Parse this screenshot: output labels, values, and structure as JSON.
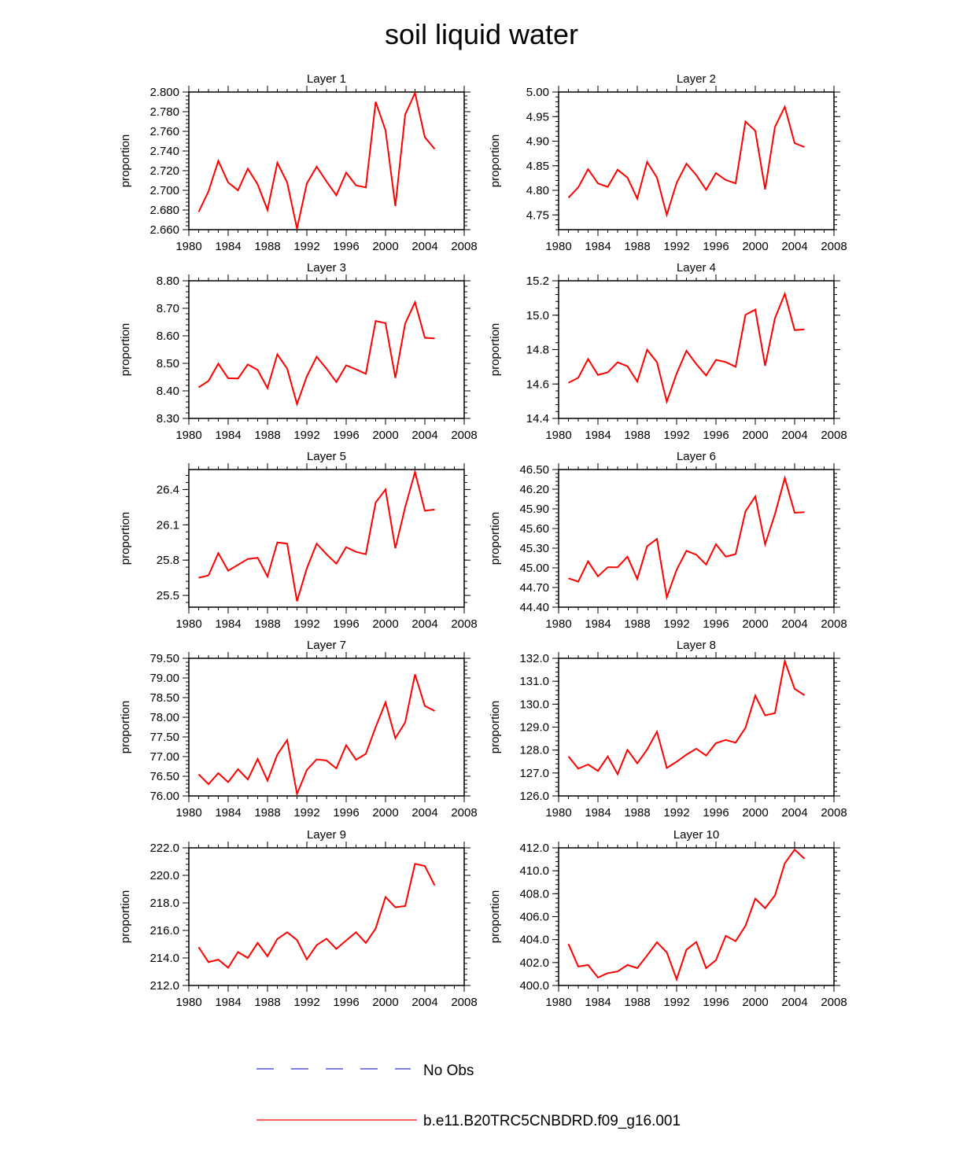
{
  "title": "soil liquid water",
  "colors": {
    "model": "#ff0000",
    "obs": "#3333cc",
    "axis": "#000000"
  },
  "legend": [
    {
      "label": "No Obs",
      "style": "dashed",
      "color": "#3333cc"
    },
    {
      "label": "b.e11.B20TRC5CNBDRD.f09_g16.001",
      "style": "solid",
      "color": "#ff0000"
    }
  ],
  "chart_data": [
    {
      "type": "line",
      "title": "Layer 1",
      "ylabel": "proportion",
      "xlabel": "",
      "xlim": [
        1980,
        2008
      ],
      "ylim": [
        2.66,
        2.8
      ],
      "xticks": [
        "1980",
        "1984",
        "1988",
        "1992",
        "1996",
        "2000",
        "2004",
        "2008"
      ],
      "yticks": [
        "2.660",
        "2.680",
        "2.700",
        "2.720",
        "2.740",
        "2.760",
        "2.780",
        "2.800"
      ],
      "x": [
        1981,
        1982,
        1983,
        1984,
        1985,
        1986,
        1987,
        1988,
        1989,
        1990,
        1991,
        1992,
        1993,
        1994,
        1995,
        1996,
        1997,
        1998,
        1999,
        2000,
        2001,
        2002,
        2003,
        2004,
        2005
      ],
      "series": [
        {
          "name": "b.e11.B20TRC5CNBDRD.f09_g16.001",
          "values": [
            2.678,
            2.699,
            2.73,
            2.708,
            2.7,
            2.722,
            2.706,
            2.68,
            2.728,
            2.708,
            2.661,
            2.707,
            2.724,
            2.709,
            2.695,
            2.718,
            2.705,
            2.703,
            2.79,
            2.761,
            2.684,
            2.777,
            2.799,
            2.754,
            2.742
          ]
        }
      ]
    },
    {
      "type": "line",
      "title": "Layer 2",
      "ylabel": "proportion",
      "xlabel": "",
      "xlim": [
        1980,
        2008
      ],
      "ylim": [
        4.72,
        5.0
      ],
      "xticks": [
        "1980",
        "1984",
        "1988",
        "1992",
        "1996",
        "2000",
        "2004",
        "2008"
      ],
      "yticks": [
        "4.75",
        "4.80",
        "4.85",
        "4.90",
        "4.95",
        "5.00"
      ],
      "x": [
        1981,
        1982,
        1983,
        1984,
        1985,
        1986,
        1987,
        1988,
        1989,
        1990,
        1991,
        1992,
        1993,
        1994,
        1995,
        1996,
        1997,
        1998,
        1999,
        2000,
        2001,
        2002,
        2003,
        2004,
        2005
      ],
      "series": [
        {
          "name": "b.e11.B20TRC5CNBDRD.f09_g16.001",
          "values": [
            4.785,
            4.806,
            4.843,
            4.814,
            4.807,
            4.842,
            4.826,
            4.783,
            4.858,
            4.826,
            4.75,
            4.815,
            4.854,
            4.831,
            4.801,
            4.835,
            4.821,
            4.814,
            4.94,
            4.921,
            4.802,
            4.929,
            4.97,
            4.896,
            4.888
          ]
        }
      ]
    },
    {
      "type": "line",
      "title": "Layer 3",
      "ylabel": "proportion",
      "xlabel": "",
      "xlim": [
        1980,
        2008
      ],
      "ylim": [
        8.3,
        8.8
      ],
      "xticks": [
        "1980",
        "1984",
        "1988",
        "1992",
        "1996",
        "2000",
        "2004",
        "2008"
      ],
      "yticks": [
        "8.30",
        "8.40",
        "8.50",
        "8.60",
        "8.70",
        "8.80"
      ],
      "x": [
        1981,
        1982,
        1983,
        1984,
        1985,
        1986,
        1987,
        1988,
        1989,
        1990,
        1991,
        1992,
        1993,
        1994,
        1995,
        1996,
        1997,
        1998,
        1999,
        2000,
        2001,
        2002,
        2003,
        2004,
        2005
      ],
      "series": [
        {
          "name": "b.e11.B20TRC5CNBDRD.f09_g16.001",
          "values": [
            8.413,
            8.436,
            8.499,
            8.446,
            8.445,
            8.496,
            8.476,
            8.41,
            8.533,
            8.481,
            8.352,
            8.453,
            8.524,
            8.481,
            8.432,
            8.493,
            8.478,
            8.462,
            8.654,
            8.646,
            8.447,
            8.645,
            8.722,
            8.593,
            8.591
          ]
        }
      ]
    },
    {
      "type": "line",
      "title": "Layer 4",
      "ylabel": "proportion",
      "xlabel": "",
      "xlim": [
        1980,
        2008
      ],
      "ylim": [
        14.4,
        15.2
      ],
      "xticks": [
        "1980",
        "1984",
        "1988",
        "1992",
        "1996",
        "2000",
        "2004",
        "2008"
      ],
      "yticks": [
        "14.4",
        "14.6",
        "14.8",
        "15.0",
        "15.2"
      ],
      "x": [
        1981,
        1982,
        1983,
        1984,
        1985,
        1986,
        1987,
        1988,
        1989,
        1990,
        1991,
        1992,
        1993,
        1994,
        1995,
        1996,
        1997,
        1998,
        1999,
        2000,
        2001,
        2002,
        2003,
        2004,
        2005
      ],
      "series": [
        {
          "name": "b.e11.B20TRC5CNBDRD.f09_g16.001",
          "values": [
            14.607,
            14.637,
            14.745,
            14.653,
            14.668,
            14.726,
            14.703,
            14.614,
            14.799,
            14.727,
            14.497,
            14.66,
            14.793,
            14.716,
            14.649,
            14.74,
            14.728,
            14.7,
            15.002,
            15.032,
            14.706,
            14.983,
            15.124,
            14.913,
            14.918
          ]
        }
      ]
    },
    {
      "type": "line",
      "title": "Layer 5",
      "ylabel": "proportion",
      "xlabel": "",
      "xlim": [
        1980,
        2008
      ],
      "ylim": [
        25.4,
        26.57
      ],
      "xticks": [
        "1980",
        "1984",
        "1988",
        "1992",
        "1996",
        "2000",
        "2004",
        "2008"
      ],
      "yticks": [
        "25.5",
        "25.8",
        "26.1",
        "26.4"
      ],
      "x": [
        1981,
        1982,
        1983,
        1984,
        1985,
        1986,
        1987,
        1988,
        1989,
        1990,
        1991,
        1992,
        1993,
        1994,
        1995,
        1996,
        1997,
        1998,
        1999,
        2000,
        2001,
        2002,
        2003,
        2004,
        2005
      ],
      "series": [
        {
          "name": "b.e11.B20TRC5CNBDRD.f09_g16.001",
          "values": [
            25.65,
            25.67,
            25.86,
            25.71,
            25.76,
            25.81,
            25.82,
            25.66,
            25.95,
            25.94,
            25.45,
            25.73,
            25.94,
            25.85,
            25.77,
            25.91,
            25.87,
            25.85,
            26.29,
            26.4,
            25.9,
            26.25,
            26.55,
            26.22,
            26.23
          ]
        }
      ]
    },
    {
      "type": "line",
      "title": "Layer 6",
      "ylabel": "proportion",
      "xlabel": "",
      "xlim": [
        1980,
        2008
      ],
      "ylim": [
        44.4,
        46.5
      ],
      "xticks": [
        "1980",
        "1984",
        "1988",
        "1992",
        "1996",
        "2000",
        "2004",
        "2008"
      ],
      "yticks": [
        "44.40",
        "44.70",
        "45.00",
        "45.30",
        "45.60",
        "45.90",
        "46.20",
        "46.50"
      ],
      "x": [
        1981,
        1982,
        1983,
        1984,
        1985,
        1986,
        1987,
        1988,
        1989,
        1990,
        1991,
        1992,
        1993,
        1994,
        1995,
        1996,
        1997,
        1998,
        1999,
        2000,
        2001,
        2002,
        2003,
        2004,
        2005
      ],
      "series": [
        {
          "name": "b.e11.B20TRC5CNBDRD.f09_g16.001",
          "values": [
            44.84,
            44.79,
            45.1,
            44.87,
            45.01,
            45.01,
            45.17,
            44.83,
            45.33,
            45.44,
            44.55,
            44.97,
            45.26,
            45.2,
            45.05,
            45.36,
            45.17,
            45.21,
            45.86,
            46.09,
            45.36,
            45.82,
            46.37,
            45.84,
            45.85
          ]
        }
      ]
    },
    {
      "type": "line",
      "title": "Layer 7",
      "ylabel": "proportion",
      "xlabel": "",
      "xlim": [
        1980,
        2008
      ],
      "ylim": [
        76.0,
        79.5
      ],
      "xticks": [
        "1980",
        "1984",
        "1988",
        "1992",
        "1996",
        "2000",
        "2004",
        "2008"
      ],
      "yticks": [
        "76.00",
        "76.50",
        "77.00",
        "77.50",
        "78.00",
        "78.50",
        "79.00",
        "79.50"
      ],
      "x": [
        1981,
        1982,
        1983,
        1984,
        1985,
        1986,
        1987,
        1988,
        1989,
        1990,
        1991,
        1992,
        1993,
        1994,
        1995,
        1996,
        1997,
        1998,
        1999,
        2000,
        2001,
        2002,
        2003,
        2004,
        2005
      ],
      "series": [
        {
          "name": "b.e11.B20TRC5CNBDRD.f09_g16.001",
          "values": [
            76.55,
            76.3,
            76.58,
            76.35,
            76.68,
            76.42,
            76.94,
            76.39,
            77.05,
            77.42,
            76.05,
            76.66,
            76.93,
            76.9,
            76.7,
            77.29,
            76.92,
            77.07,
            77.75,
            78.38,
            77.47,
            77.87,
            79.09,
            78.29,
            78.16
          ]
        }
      ]
    },
    {
      "type": "line",
      "title": "Layer 8",
      "ylabel": "proportion",
      "xlabel": "",
      "xlim": [
        1980,
        2008
      ],
      "ylim": [
        126.0,
        132.0
      ],
      "xticks": [
        "1980",
        "1984",
        "1988",
        "1992",
        "1996",
        "2000",
        "2004",
        "2008"
      ],
      "yticks": [
        "126.0",
        "127.0",
        "128.0",
        "129.0",
        "130.0",
        "131.0",
        "132.0"
      ],
      "x": [
        1981,
        1982,
        1983,
        1984,
        1985,
        1986,
        1987,
        1988,
        1989,
        1990,
        1991,
        1992,
        1993,
        1994,
        1995,
        1996,
        1997,
        1998,
        1999,
        2000,
        2001,
        2002,
        2003,
        2004,
        2005
      ],
      "series": [
        {
          "name": "b.e11.B20TRC5CNBDRD.f09_g16.001",
          "values": [
            127.72,
            127.19,
            127.37,
            127.09,
            127.72,
            126.95,
            128.01,
            127.42,
            128.02,
            128.8,
            127.22,
            127.49,
            127.8,
            128.06,
            127.76,
            128.3,
            128.44,
            128.32,
            128.97,
            130.37,
            129.51,
            129.61,
            131.88,
            130.67,
            130.39
          ]
        }
      ]
    },
    {
      "type": "line",
      "title": "Layer 9",
      "ylabel": "proportion",
      "xlabel": "",
      "xlim": [
        1980,
        2008
      ],
      "ylim": [
        212.0,
        222.0
      ],
      "xticks": [
        "1980",
        "1984",
        "1988",
        "1992",
        "1996",
        "2000",
        "2004",
        "2008"
      ],
      "yticks": [
        "212.0",
        "214.0",
        "216.0",
        "218.0",
        "220.0",
        "222.0"
      ],
      "x": [
        1981,
        1982,
        1983,
        1984,
        1985,
        1986,
        1987,
        1988,
        1989,
        1990,
        1991,
        1992,
        1993,
        1994,
        1995,
        1996,
        1997,
        1998,
        1999,
        2000,
        2001,
        2002,
        2003,
        2004,
        2005
      ],
      "series": [
        {
          "name": "b.e11.B20TRC5CNBDRD.f09_g16.001",
          "values": [
            214.78,
            213.7,
            213.88,
            213.29,
            214.43,
            214.0,
            215.1,
            214.12,
            215.38,
            215.86,
            215.3,
            213.9,
            214.93,
            215.4,
            214.66,
            215.27,
            215.86,
            215.09,
            216.14,
            218.43,
            217.68,
            217.77,
            220.84,
            220.68,
            219.27
          ]
        }
      ]
    },
    {
      "type": "line",
      "title": "Layer 10",
      "ylabel": "proportion",
      "xlabel": "",
      "xlim": [
        1980,
        2008
      ],
      "ylim": [
        400.0,
        412.0
      ],
      "xticks": [
        "1980",
        "1984",
        "1988",
        "1992",
        "1996",
        "2000",
        "2004",
        "2008"
      ],
      "yticks": [
        "400.0",
        "402.0",
        "404.0",
        "406.0",
        "408.0",
        "410.0",
        "412.0"
      ],
      "x": [
        1981,
        1982,
        1983,
        1984,
        1985,
        1986,
        1987,
        1988,
        1989,
        1990,
        1991,
        1992,
        1993,
        1994,
        1995,
        1996,
        1997,
        1998,
        1999,
        2000,
        2001,
        2002,
        2003,
        2004,
        2005
      ],
      "series": [
        {
          "name": "b.e11.B20TRC5CNBDRD.f09_g16.001",
          "values": [
            403.62,
            401.65,
            401.78,
            400.69,
            401.08,
            401.22,
            401.79,
            401.51,
            402.62,
            403.77,
            402.89,
            400.54,
            403.12,
            403.79,
            401.51,
            402.21,
            404.33,
            403.86,
            405.2,
            407.57,
            406.74,
            407.85,
            410.65,
            411.84,
            411.06
          ]
        }
      ]
    }
  ]
}
